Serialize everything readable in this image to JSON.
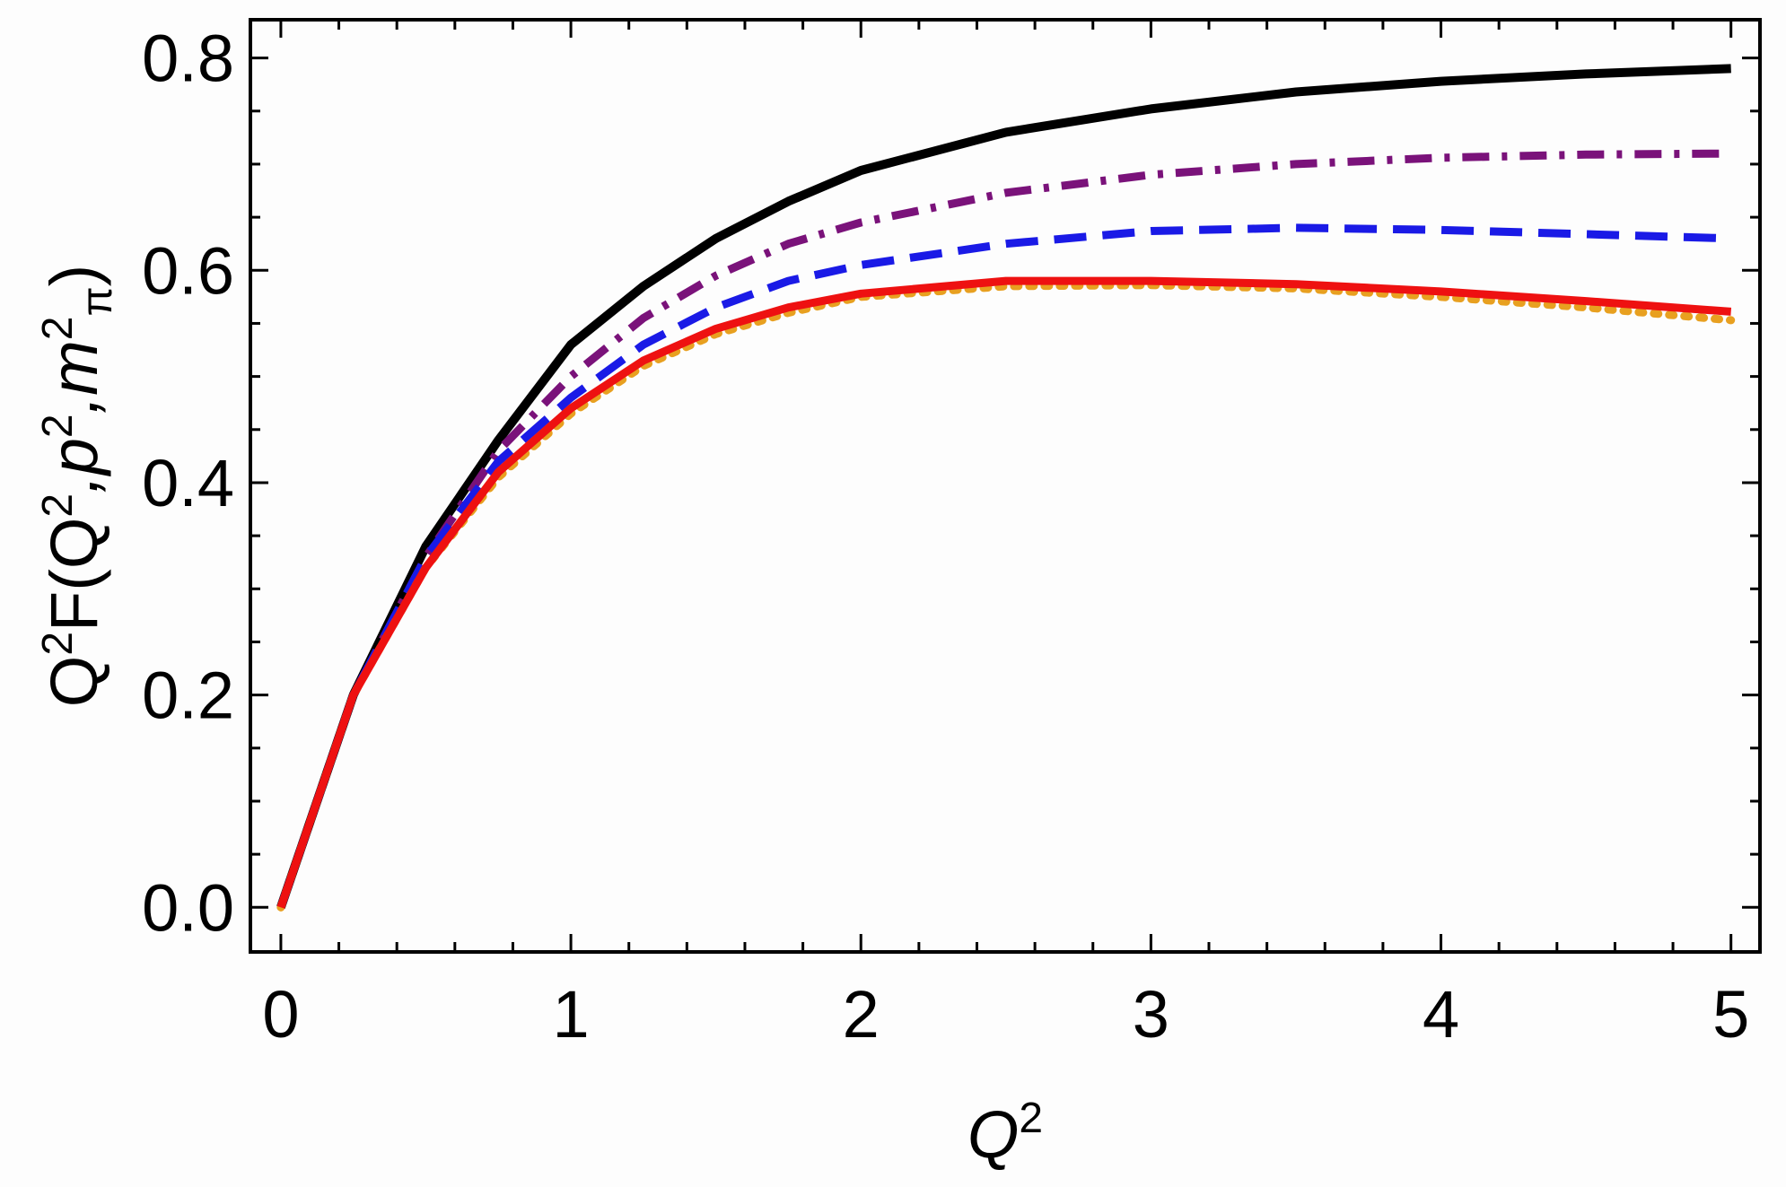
{
  "chart_data": {
    "type": "line",
    "xlabel": [
      {
        "text": "Q",
        "shift": "italic"
      },
      {
        "text": "2",
        "shift": "super"
      }
    ],
    "ylabel": [
      {
        "text": "Q",
        "shift": "normal"
      },
      {
        "text": "2",
        "shift": "super"
      },
      {
        "text": "F(Q",
        "shift": "normal"
      },
      {
        "text": "2",
        "shift": "super"
      },
      {
        "text": ",p",
        "shift": "italic"
      },
      {
        "text": "2",
        "shift": "super"
      },
      {
        "text": ",m",
        "shift": "italic"
      },
      {
        "text": "2",
        "shift": "super"
      },
      {
        "text": "π",
        "shift": "sub"
      },
      {
        "text": ")",
        "shift": "normal"
      }
    ],
    "x": [
      0,
      0.25,
      0.5,
      0.75,
      1,
      1.25,
      1.5,
      1.75,
      2,
      2.5,
      3,
      3.5,
      4,
      4.5,
      5
    ],
    "series": [
      {
        "color": "#000000",
        "style": "solid",
        "values": [
          0,
          0.2,
          0.34,
          0.44,
          0.53,
          0.585,
          0.63,
          0.665,
          0.694,
          0.73,
          0.752,
          0.768,
          0.778,
          0.785,
          0.79
        ]
      },
      {
        "color": "#7a127a",
        "style": "dashdot",
        "values": [
          0,
          0.2,
          0.33,
          0.43,
          0.5,
          0.555,
          0.595,
          0.625,
          0.645,
          0.673,
          0.69,
          0.7,
          0.706,
          0.709,
          0.71
        ]
      },
      {
        "color": "#1a1ae6",
        "style": "dashed",
        "values": [
          0,
          0.2,
          0.33,
          0.42,
          0.48,
          0.53,
          0.565,
          0.59,
          0.605,
          0.625,
          0.637,
          0.64,
          0.638,
          0.634,
          0.63
        ]
      },
      {
        "color": "#e8a020",
        "style": "dotted",
        "values": [
          0,
          0.2,
          0.32,
          0.405,
          0.465,
          0.51,
          0.54,
          0.56,
          0.575,
          0.585,
          0.586,
          0.583,
          0.575,
          0.565,
          0.553
        ]
      },
      {
        "color": "#ee1111",
        "style": "solid",
        "values": [
          0,
          0.2,
          0.32,
          0.41,
          0.47,
          0.515,
          0.545,
          0.565,
          0.578,
          0.59,
          0.59,
          0.587,
          0.58,
          0.571,
          0.561
        ]
      }
    ],
    "xlim": [
      -0.105,
      5.1
    ],
    "ylim": [
      -0.042,
      0.836
    ],
    "xticks": [
      0,
      1,
      2,
      3,
      4,
      5
    ],
    "yticks": [
      {
        "value": 0,
        "label": "0.0"
      },
      0.2,
      0.4,
      0.6,
      0.8
    ],
    "xminorticks": [
      0.2,
      0.4,
      0.6,
      0.8,
      1.2,
      1.4,
      1.6,
      1.8,
      2.2,
      2.4,
      2.6,
      2.8,
      3.2,
      3.4,
      3.6,
      3.8,
      4.2,
      4.4,
      4.6,
      4.8
    ],
    "yminorticks": [
      0.05,
      0.1,
      0.15,
      0.25,
      0.3,
      0.35,
      0.45,
      0.5,
      0.55,
      0.65,
      0.7,
      0.75
    ]
  }
}
